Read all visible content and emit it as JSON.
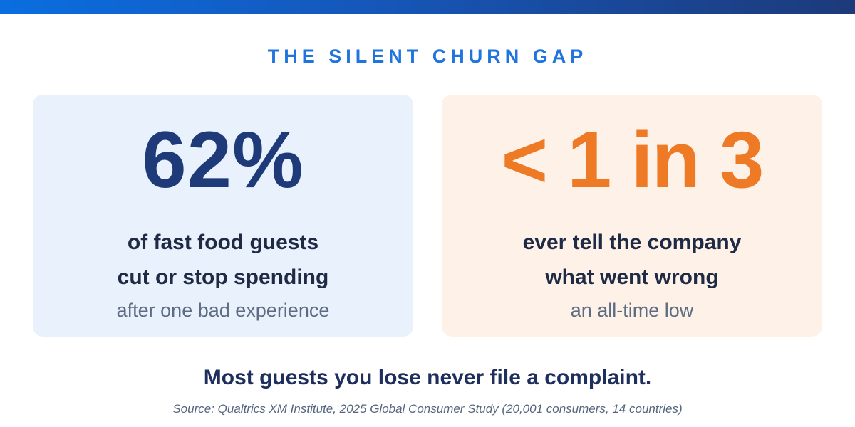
{
  "header": {
    "accent_gradient": [
      "#0a6ee0",
      "#1d3a7a"
    ],
    "title": "THE SILENT CHURN GAP",
    "title_color": "#1f74de"
  },
  "cards": [
    {
      "stat": "62%",
      "stat_color": "#1e3a78",
      "background": "#e9f1fc",
      "line1": "of fast food guests",
      "line2": "cut or stop spending",
      "line3": "after one bad experience"
    },
    {
      "stat": "< 1 in 3",
      "stat_color": "#ee7a25",
      "background": "#fdf1e8",
      "line1": "ever tell the company",
      "line2": "what went wrong",
      "line3": "an all-time low"
    }
  ],
  "footer": {
    "tagline": "Most guests you lose never file a complaint.",
    "source": "Source: Qualtrics XM Institute, 2025 Global Consumer Study (20,001 consumers, 14 countries)"
  }
}
